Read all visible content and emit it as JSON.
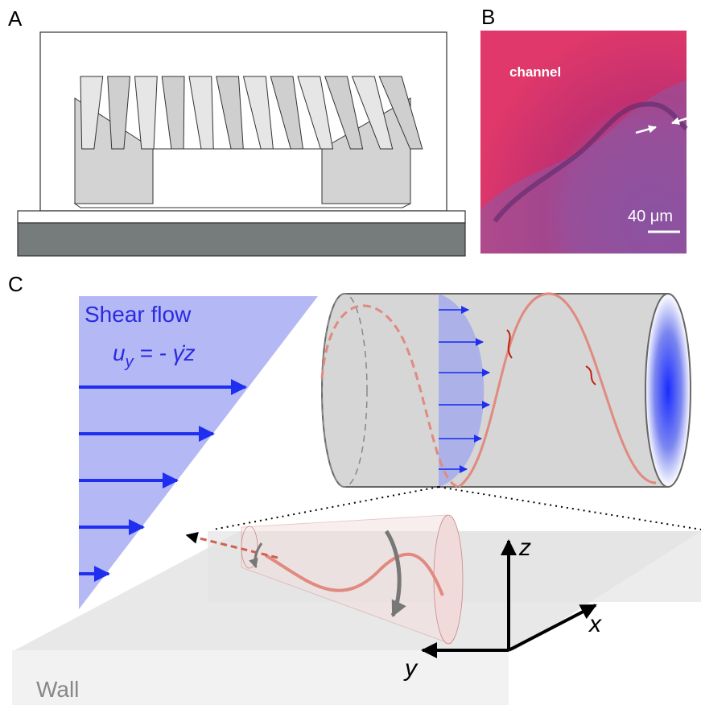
{
  "panels": {
    "a": {
      "label": "A"
    },
    "b": {
      "label": "B",
      "region_label": "channel",
      "scale_bar": "40 μm"
    },
    "c": {
      "label": "C",
      "flow_title": "Shear flow",
      "equation": {
        "variable": "u",
        "subscript": "y",
        "rhs": " = - γ̇z"
      },
      "axes": {
        "z": "z",
        "x": "x",
        "y": "y"
      },
      "wall": "Wall"
    }
  }
}
